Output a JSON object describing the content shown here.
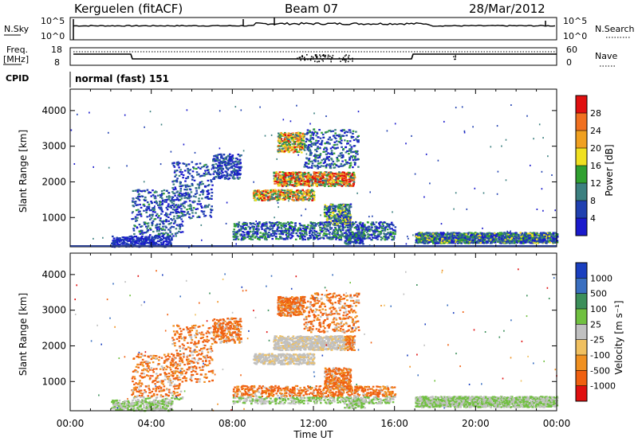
{
  "header": {
    "station": "Kerguelen (fitACF)",
    "beam": "Beam 07",
    "date": "28/Mar/2012"
  },
  "strip_labels": {
    "nsky": "N.Sky",
    "nsky_top": "10^5",
    "nsky_bottom": "10^0",
    "nsearch": "N.Search",
    "nsearch_top": "10^5",
    "nsearch_bottom": "10^0",
    "freq": "Freq.",
    "freq_unit": "[MHz]",
    "freq_top": "18",
    "freq_bottom": "8",
    "nave": "Nave",
    "nave_top": "60",
    "nave_bottom": "0",
    "cpid": "CPID",
    "cpid_value": "normal (fast) 151"
  },
  "colors": {
    "axis": "#000000",
    "power_low": "#1a1acc",
    "power_high": "#e01010",
    "velocity_toward": "#1a3fbf",
    "velocity_away": "#e02010",
    "ground_scatter": "#bfbfbf"
  },
  "chart_data": [
    {
      "type": "heatmap",
      "panel": "power",
      "ylabel": "Slant Range [km]",
      "ylim": [
        180,
        4600
      ],
      "yticks": [
        "1000",
        "2000",
        "3000",
        "4000"
      ],
      "colorbar": {
        "label": "Power [dB]",
        "ticks": [
          "28",
          "24",
          "20",
          "16",
          "12",
          "8",
          "4"
        ],
        "colors": [
          "#e01010",
          "#f07020",
          "#f0a020",
          "#f0e020",
          "#30a030",
          "#3c8080",
          "#2040b0",
          "#1a1acc"
        ]
      }
    },
    {
      "type": "heatmap",
      "panel": "velocity",
      "ylabel": "Slant Range [km]",
      "ylim": [
        180,
        4600
      ],
      "yticks": [
        "1000",
        "2000",
        "3000",
        "4000"
      ],
      "colorbar": {
        "label": "Velocity [m s⁻¹]",
        "ticks": [
          "1000",
          "500",
          "100",
          "25",
          "-25",
          "-100",
          "-500",
          "-1000"
        ],
        "colors": [
          "#1a3fbf",
          "#3a6fc0",
          "#3c8f5a",
          "#70c040",
          "#c0c0c0",
          "#f0c060",
          "#f09020",
          "#f06010",
          "#e01010"
        ]
      }
    }
  ],
  "xaxis": {
    "label": "Time UT",
    "ticks": [
      "00:00",
      "04:00",
      "08:00",
      "12:00",
      "16:00",
      "20:00",
      "00:00"
    ]
  }
}
